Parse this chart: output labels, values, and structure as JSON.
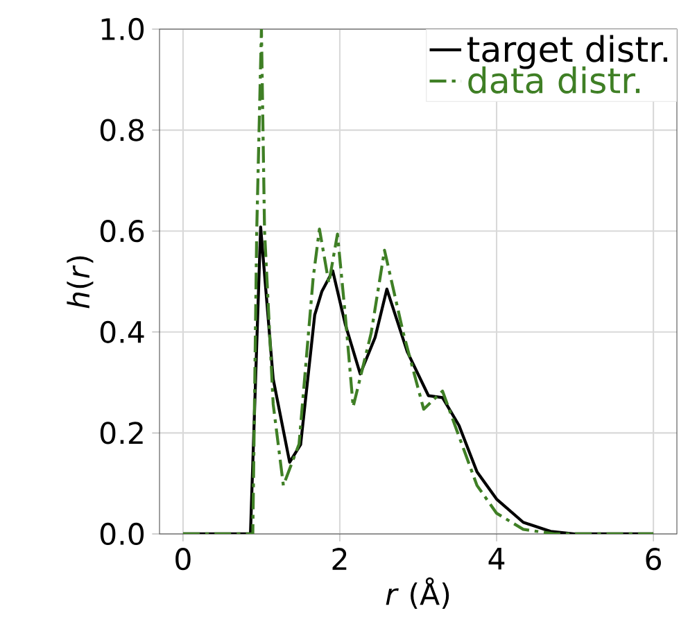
{
  "chart_data": {
    "type": "line",
    "xlabel": "*r* (Å)",
    "ylabel": "*h*(*r*)",
    "xlim": [
      -0.3,
      6.3
    ],
    "ylim": [
      0,
      1.0
    ],
    "xticks": [
      0,
      2,
      4,
      6
    ],
    "yticks": [
      {
        "value": 0,
        "label": "0.0"
      },
      {
        "value": 0.2,
        "label": "0.2"
      },
      {
        "value": 0.4,
        "label": "0.4"
      },
      {
        "value": 0.6,
        "label": "0.6"
      },
      {
        "value": 0.8,
        "label": "0.8"
      },
      {
        "value": 1.0,
        "label": "1.0"
      }
    ],
    "grid": true,
    "legend": "top right",
    "marker": "none",
    "series": [
      {
        "name": "target distr.",
        "color": "#000000",
        "line_style": "solid",
        "x": [
          0,
          0.5,
          0.86,
          0.99,
          1.15,
          1.36,
          1.5,
          1.68,
          1.77,
          1.91,
          2.07,
          2.26,
          2.45,
          2.6,
          2.86,
          3.13,
          3.31,
          3.52,
          3.75,
          4.0,
          4.34,
          4.69,
          5.0,
          5.5,
          6.0
        ],
        "values": [
          0,
          0,
          0,
          0.608,
          0.307,
          0.142,
          0.177,
          0.434,
          0.48,
          0.521,
          0.415,
          0.317,
          0.389,
          0.485,
          0.361,
          0.274,
          0.27,
          0.215,
          0.123,
          0.069,
          0.023,
          0.005,
          0,
          0,
          0
        ]
      },
      {
        "name": "data distr.",
        "color": "#3f7f25",
        "line_style": "dashdot",
        "x": [
          0,
          0.5,
          0.89,
          0.94,
          1.0,
          1.04,
          1.15,
          1.28,
          1.48,
          1.66,
          1.74,
          1.86,
          1.97,
          2.07,
          2.17,
          2.4,
          2.57,
          2.81,
          3.07,
          3.31,
          3.49,
          3.75,
          4.0,
          4.34,
          4.75,
          5.5,
          6.0
        ],
        "values": [
          0,
          0,
          0,
          0.6,
          1.0,
          0.6,
          0.257,
          0.096,
          0.178,
          0.507,
          0.604,
          0.497,
          0.594,
          0.433,
          0.252,
          0.398,
          0.562,
          0.398,
          0.247,
          0.283,
          0.206,
          0.096,
          0.041,
          0.009,
          0,
          0,
          0
        ]
      }
    ]
  }
}
